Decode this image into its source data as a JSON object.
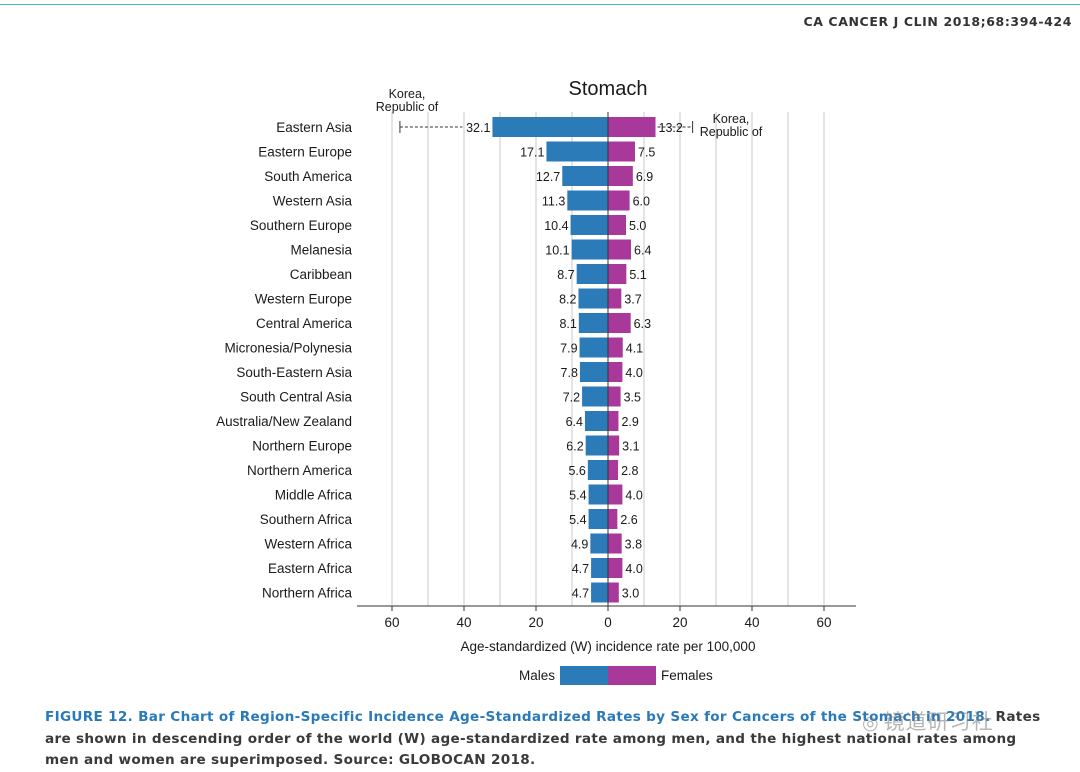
{
  "header": {
    "journal": "CA CANCER J CLIN 2018;68:394-424"
  },
  "chart_data": {
    "type": "bar",
    "orientation": "horizontal-diverging",
    "title": "Stomach",
    "xlabel": "Age-standardized (W) incidence rate per 100,000",
    "xlim": [
      -60,
      60
    ],
    "xticks": [
      -60,
      -40,
      -20,
      0,
      20,
      40,
      60
    ],
    "xtick_labels": [
      "60",
      "40",
      "20",
      "0",
      "20",
      "40",
      "60"
    ],
    "categories": [
      "Eastern Asia",
      "Eastern Europe",
      "South America",
      "Western Asia",
      "Southern Europe",
      "Melanesia",
      "Caribbean",
      "Western Europe",
      "Central America",
      "Micronesia/Polynesia",
      "South-Eastern Asia",
      "South Central Asia",
      "Australia/New Zealand",
      "Northern Europe",
      "Northern America",
      "Middle Africa",
      "Southern Africa",
      "Western Africa",
      "Eastern Africa",
      "Northern Africa"
    ],
    "series": [
      {
        "name": "Males",
        "color": "#2b7bb9",
        "values": [
          32.1,
          17.1,
          12.7,
          11.3,
          10.4,
          10.1,
          8.7,
          8.2,
          8.1,
          7.9,
          7.8,
          7.2,
          6.4,
          6.2,
          5.6,
          5.4,
          5.4,
          4.9,
          4.7,
          4.7
        ]
      },
      {
        "name": "Females",
        "color": "#a8399a",
        "values": [
          13.2,
          7.5,
          6.9,
          6.0,
          5.0,
          6.4,
          5.1,
          3.7,
          6.3,
          4.1,
          4.0,
          3.5,
          2.9,
          3.1,
          2.8,
          4.0,
          2.6,
          3.8,
          4.0,
          3.0
        ]
      }
    ],
    "value_labels": {
      "Males": [
        "32.1",
        "17.1",
        "12.7",
        "11.3",
        "10.4",
        "10.1",
        "8.7",
        "8.2",
        "8.1",
        "7.9",
        "7.8",
        "7.2",
        "6.4",
        "6.2",
        "5.6",
        "5.4",
        "5.4",
        "4.9",
        "4.7",
        "4.7"
      ],
      "Females": [
        "13.2",
        "7.5",
        "6.9",
        "6.0",
        "5.0",
        "6.4",
        "5.1",
        "3.7",
        "6.3",
        "4.1",
        "4.0",
        "3.5",
        "2.9",
        "3.1",
        "2.8",
        "4.0",
        "2.6",
        "3.8",
        "4.0",
        "3.0"
      ]
    },
    "highest_national": {
      "males": {
        "country_lines": [
          "Korea,",
          "Republic of"
        ],
        "value": 57.8
      },
      "females": {
        "country_lines": [
          "Korea,",
          "Republic of"
        ],
        "value": 23.5
      }
    },
    "legend": {
      "position": "bottom-center",
      "labels": [
        "Males",
        "Females"
      ]
    }
  },
  "caption": {
    "lead": "FIGURE 12. Bar Chart of Region-Specific Incidence Age-Standardized Rates by Sex for Cancers of the Stomach in 2018.",
    "body": " Rates are shown in descending order of the world (W) age-standardized rate among men, and the highest national rates among men and women are superimposed. Source: GLOBOCAN 2018."
  },
  "watermark": {
    "text": "镜道研习社",
    "icon": "wechat-icon"
  }
}
